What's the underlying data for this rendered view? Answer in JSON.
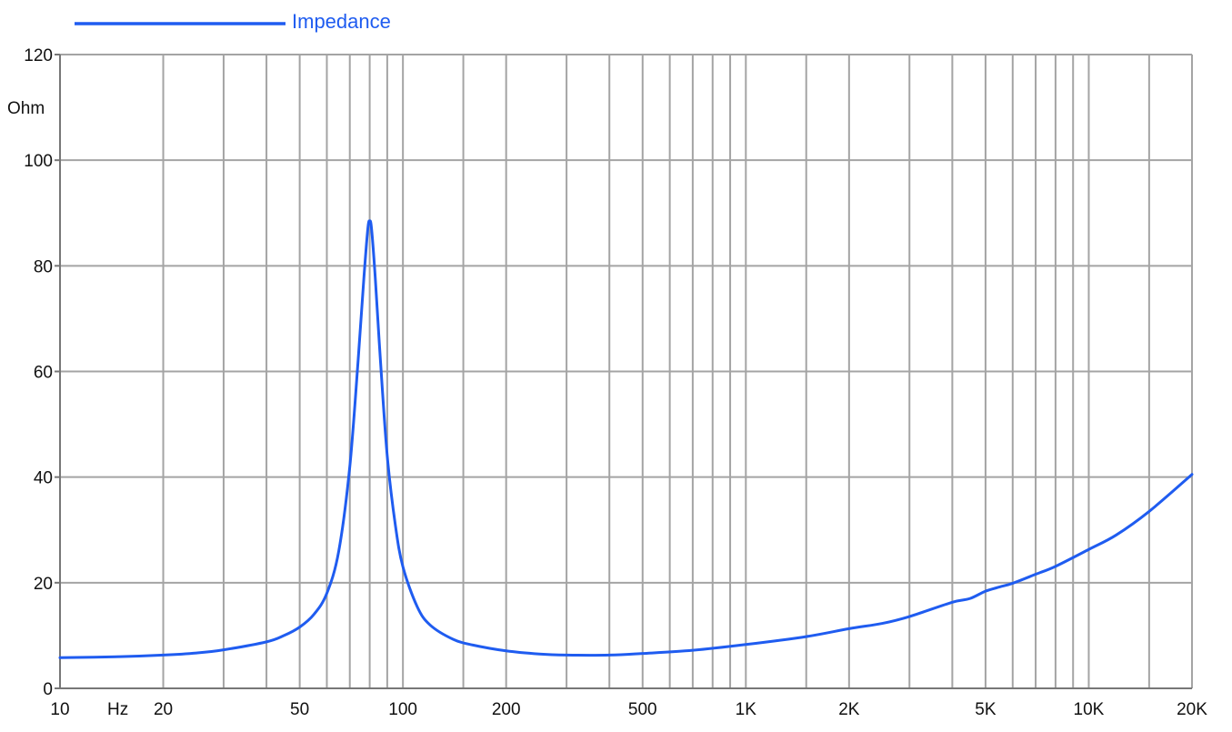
{
  "chart_data": {
    "type": "line",
    "x_scale": "log",
    "xlim": [
      10,
      20000
    ],
    "ylim": [
      0,
      120
    ],
    "grid": true,
    "legend_position": "top-left",
    "ylabel": "Ohm",
    "xunit_label": "Hz",
    "y_ticks": [
      {
        "value": 0,
        "label": "0"
      },
      {
        "value": 20,
        "label": "20"
      },
      {
        "value": 40,
        "label": "40"
      },
      {
        "value": 60,
        "label": "60"
      },
      {
        "value": 80,
        "label": "80"
      },
      {
        "value": 100,
        "label": "100"
      },
      {
        "value": 120,
        "label": "120"
      }
    ],
    "x_ticks": [
      {
        "value": 10,
        "label": "10"
      },
      {
        "value": 20,
        "label": "20"
      },
      {
        "value": 50,
        "label": "50"
      },
      {
        "value": 100,
        "label": "100"
      },
      {
        "value": 200,
        "label": "200"
      },
      {
        "value": 500,
        "label": "500"
      },
      {
        "value": 1000,
        "label": "1K"
      },
      {
        "value": 2000,
        "label": "2K"
      },
      {
        "value": 5000,
        "label": "5K"
      },
      {
        "value": 10000,
        "label": "10K"
      },
      {
        "value": 20000,
        "label": "20K"
      }
    ],
    "x_gridlines": [
      20,
      30,
      40,
      50,
      60,
      70,
      80,
      90,
      100,
      150,
      200,
      300,
      400,
      500,
      600,
      700,
      800,
      900,
      1000,
      1500,
      2000,
      3000,
      4000,
      5000,
      6000,
      7000,
      8000,
      9000,
      10000,
      15000
    ],
    "series": [
      {
        "name": "Impedance",
        "color": "#1f5cf0",
        "points": [
          [
            10,
            5.8
          ],
          [
            15,
            6.0
          ],
          [
            20,
            6.3
          ],
          [
            25,
            6.7
          ],
          [
            30,
            7.3
          ],
          [
            40,
            8.8
          ],
          [
            45,
            10.0
          ],
          [
            50,
            11.6
          ],
          [
            55,
            14.0
          ],
          [
            60,
            18.0
          ],
          [
            65,
            26.0
          ],
          [
            70,
            42.0
          ],
          [
            74,
            62.0
          ],
          [
            77,
            78.0
          ],
          [
            79,
            87.0
          ],
          [
            80,
            88.5
          ],
          [
            81,
            87.0
          ],
          [
            83,
            78.0
          ],
          [
            86,
            62.0
          ],
          [
            90,
            44.0
          ],
          [
            95,
            31.0
          ],
          [
            100,
            23.0
          ],
          [
            110,
            15.5
          ],
          [
            120,
            12.0
          ],
          [
            140,
            9.3
          ],
          [
            160,
            8.2
          ],
          [
            200,
            7.1
          ],
          [
            250,
            6.5
          ],
          [
            300,
            6.3
          ],
          [
            400,
            6.3
          ],
          [
            500,
            6.6
          ],
          [
            700,
            7.2
          ],
          [
            1000,
            8.3
          ],
          [
            1500,
            9.8
          ],
          [
            2000,
            11.3
          ],
          [
            2500,
            12.3
          ],
          [
            3000,
            13.6
          ],
          [
            4000,
            16.3
          ],
          [
            4500,
            17.0
          ],
          [
            5000,
            18.4
          ],
          [
            5500,
            19.2
          ],
          [
            6000,
            19.9
          ],
          [
            7000,
            21.6
          ],
          [
            8000,
            23.1
          ],
          [
            10000,
            26.3
          ],
          [
            12000,
            29.0
          ],
          [
            15000,
            33.5
          ],
          [
            20000,
            40.5
          ]
        ]
      }
    ]
  }
}
